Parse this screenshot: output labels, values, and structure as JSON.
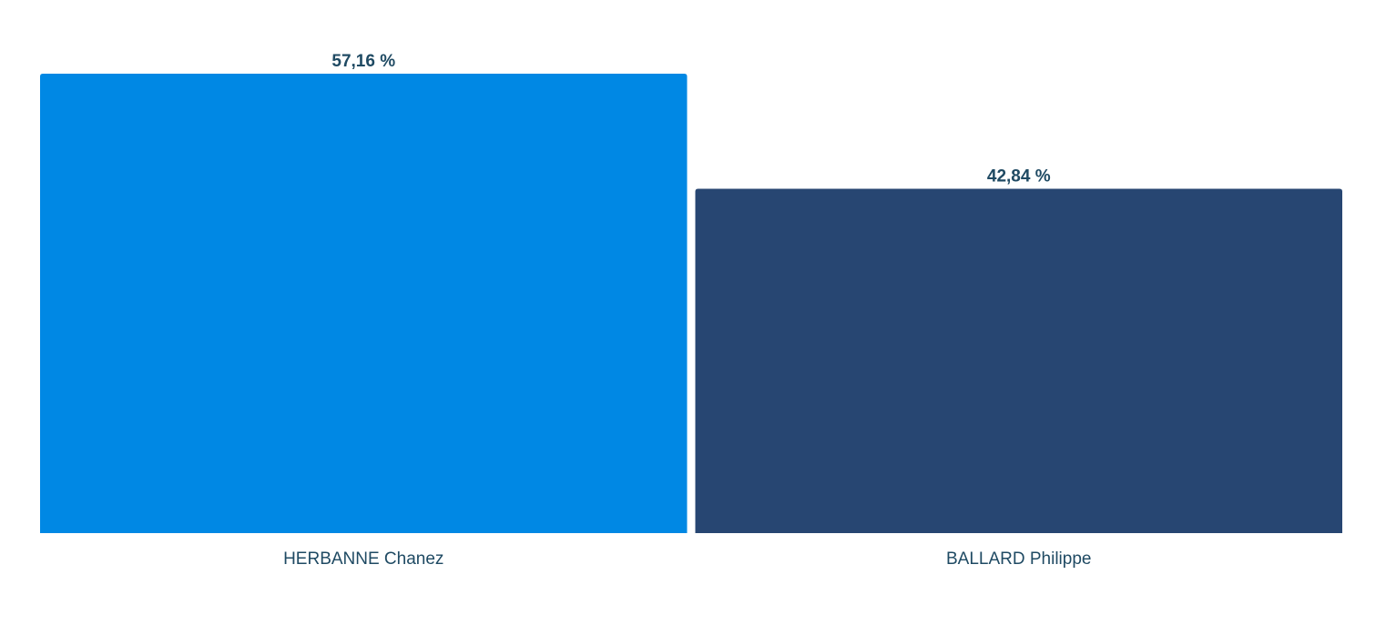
{
  "chart_data": {
    "type": "bar",
    "categories": [
      "HERBANNE Chanez",
      "BALLARD Philippe"
    ],
    "values": [
      57.16,
      42.84
    ],
    "value_labels": [
      "57,16 %",
      "42,84 %"
    ],
    "colors": [
      "#0088e4",
      "#274672"
    ],
    "title": "",
    "xlabel": "",
    "ylabel": "",
    "ylim": [
      0,
      57.16
    ],
    "grid": false,
    "legend": "none"
  }
}
